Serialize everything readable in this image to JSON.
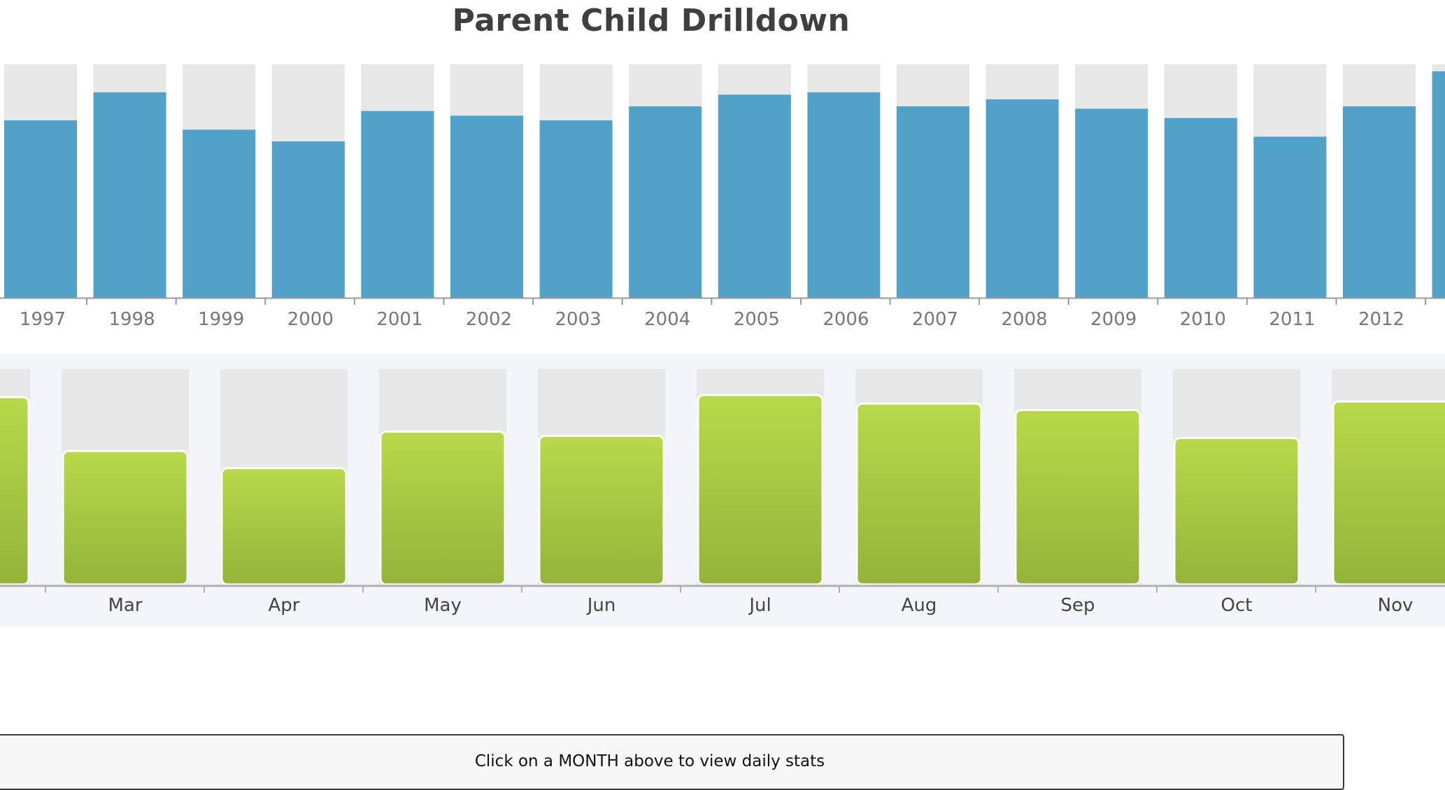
{
  "title": "Parent Child Drilldown",
  "info_panel": {
    "message": "Click on a MONTH above to view daily stats"
  },
  "chart_data": [
    {
      "type": "bar",
      "role": "parent",
      "title": "Parent Child Drilldown",
      "categories": [
        "1997",
        "1998",
        "1999",
        "2000",
        "2001",
        "2002",
        "2003",
        "2004",
        "2005",
        "2006",
        "2007",
        "2008",
        "2009",
        "2010",
        "2011",
        "2012"
      ],
      "values": [
        76,
        88,
        72,
        67,
        80,
        78,
        76,
        82,
        87,
        88,
        82,
        85,
        81,
        77,
        69,
        82
      ],
      "partial_next_value": 97,
      "ylim": [
        0,
        100
      ],
      "grid": false,
      "colors": {
        "bar": "#52a1c9",
        "track": "#e7e7e7",
        "axis": "#9a9a9a",
        "tick_text": "#777777"
      }
    },
    {
      "type": "bar",
      "role": "child",
      "categories": [
        "Mar",
        "Apr",
        "May",
        "Jun",
        "Jul",
        "Aug",
        "Sep",
        "Oct",
        "Nov"
      ],
      "values": [
        62,
        54,
        71,
        69,
        88,
        84,
        81,
        68,
        85
      ],
      "partial_prev_value": 87,
      "ylim": [
        0,
        100
      ],
      "grid": false,
      "colors": {
        "bar_top": "#b8d94a",
        "bar_bottom": "#93b43a",
        "track": "#e7e7e7",
        "band": "#f4f5fa",
        "axis": "#b0b0b0",
        "tick_text": "#444444"
      }
    }
  ]
}
